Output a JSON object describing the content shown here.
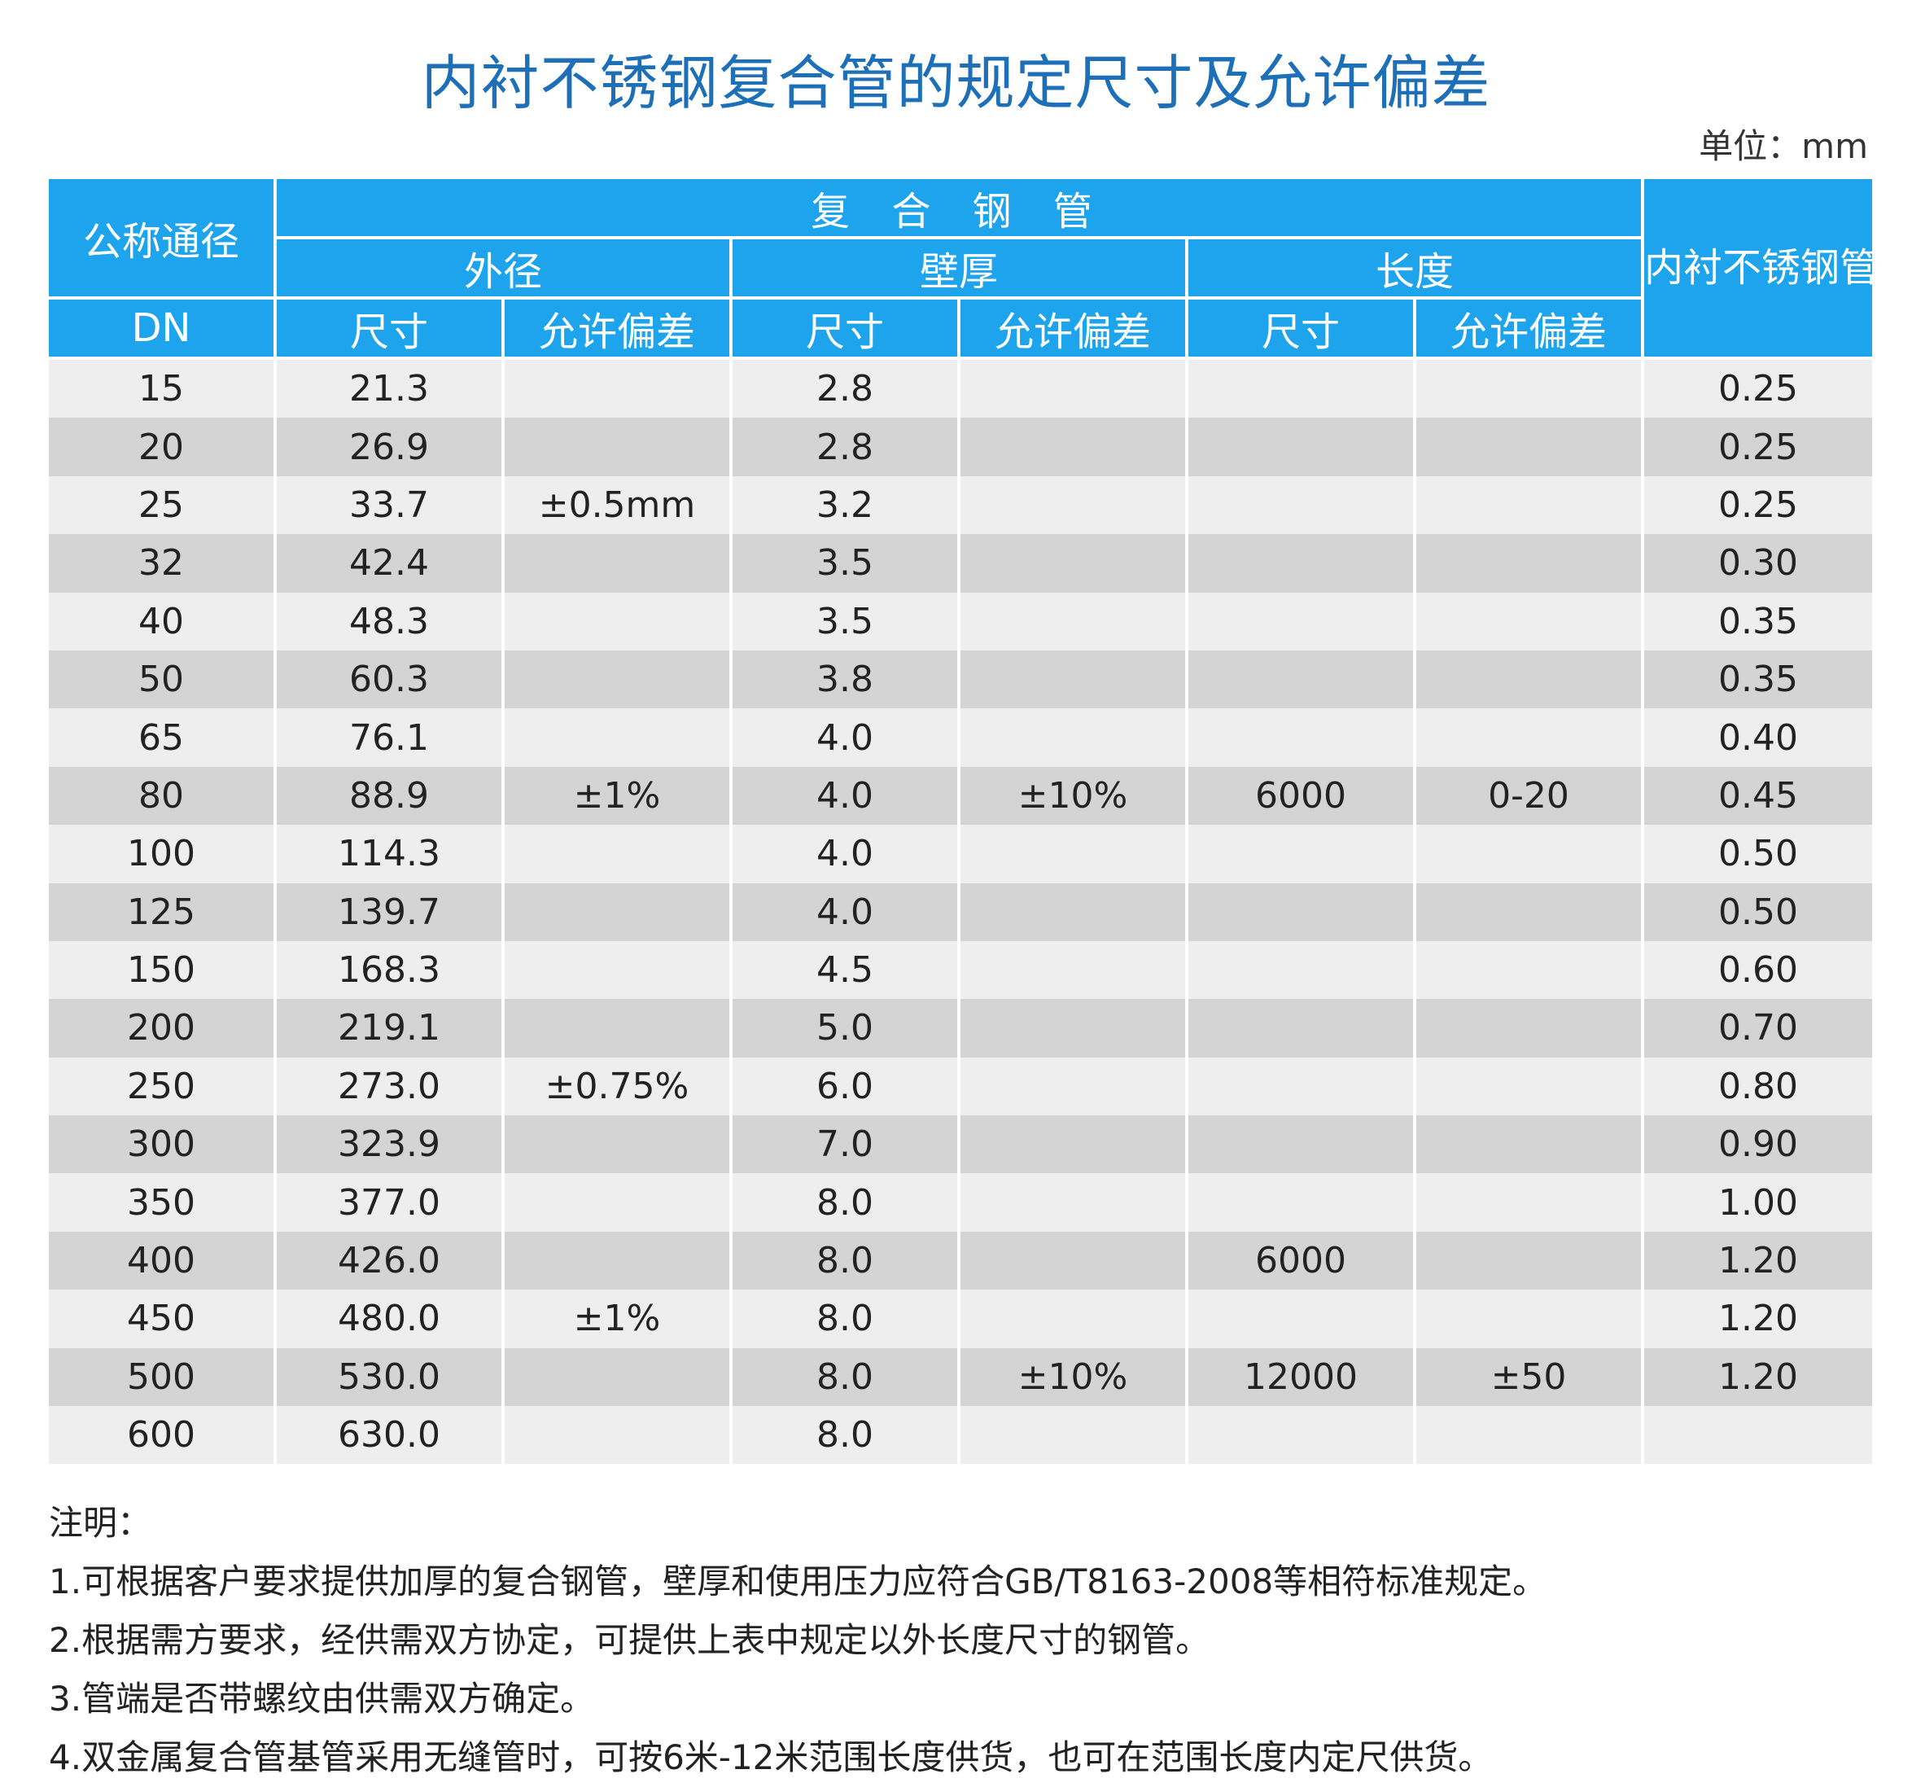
{
  "title": "内衬不锈钢复合管的规定尺寸及允许偏差",
  "unit": "单位：mm",
  "header": {
    "nominal": "公称通径",
    "dn": "DN",
    "composite": "复 合 钢 管",
    "od": "外径",
    "wall": "壁厚",
    "length": "长度",
    "size": "尺寸",
    "tolerance": "允许偏差",
    "inner_wall": "内衬不锈钢管最小壁厚"
  },
  "rows": [
    {
      "dn": "15",
      "od": "21.3",
      "wall": "2.8",
      "inner": "0.25"
    },
    {
      "dn": "20",
      "od": "26.9",
      "wall": "2.8",
      "inner": "0.25"
    },
    {
      "dn": "25",
      "od": "33.7",
      "wall": "3.2",
      "inner": "0.25"
    },
    {
      "dn": "32",
      "od": "42.4",
      "wall": "3.5",
      "inner": "0.30"
    },
    {
      "dn": "40",
      "od": "48.3",
      "wall": "3.5",
      "inner": "0.35"
    },
    {
      "dn": "50",
      "od": "60.3",
      "wall": "3.8",
      "inner": "0.35"
    },
    {
      "dn": "65",
      "od": "76.1",
      "wall": "4.0",
      "inner": "0.40"
    },
    {
      "dn": "80",
      "od": "88.9",
      "wall": "4.0",
      "inner": "0.45"
    },
    {
      "dn": "100",
      "od": "114.3",
      "wall": "4.0",
      "inner": "0.50"
    },
    {
      "dn": "125",
      "od": "139.7",
      "wall": "4.0",
      "inner": "0.50"
    },
    {
      "dn": "150",
      "od": "168.3",
      "wall": "4.5",
      "inner": "0.60"
    },
    {
      "dn": "200",
      "od": "219.1",
      "wall": "5.0",
      "inner": "0.70"
    },
    {
      "dn": "250",
      "od": "273.0",
      "wall": "6.0",
      "inner": "0.80"
    },
    {
      "dn": "300",
      "od": "323.9",
      "wall": "7.0",
      "inner": "0.90"
    },
    {
      "dn": "350",
      "od": "377.0",
      "wall": "8.0",
      "inner": "1.00"
    },
    {
      "dn": "400",
      "od": "426.0",
      "wall": "8.0",
      "inner": "1.20"
    },
    {
      "dn": "450",
      "od": "480.0",
      "wall": "8.0",
      "inner": "1.20"
    },
    {
      "dn": "500",
      "od": "530.0",
      "wall": "8.0",
      "inner": "1.20"
    },
    {
      "dn": "600",
      "od": "630.0",
      "wall": "8.0",
      "inner": ""
    }
  ],
  "od_tolerances": [
    {
      "row": 2,
      "value": "±0.5mm"
    },
    {
      "row": 7,
      "value": "±1%"
    },
    {
      "row": 12,
      "value": "±0.75%"
    },
    {
      "row": 16,
      "value": "±1%"
    }
  ],
  "wall_tolerances": [
    {
      "row": 7,
      "value": "±10%"
    },
    {
      "row": 17,
      "value": "±10%"
    }
  ],
  "length_sizes": [
    {
      "row": 7,
      "value": "6000"
    },
    {
      "row": 15,
      "value": "6000"
    },
    {
      "row": 17,
      "value": "12000"
    }
  ],
  "length_tolerances": [
    {
      "row": 7,
      "value": "0-20"
    },
    {
      "row": 17,
      "value": "±50"
    }
  ],
  "notes": [
    "注明：",
    "1.可根据客户要求提供加厚的复合钢管，壁厚和使用压力应符合GB/T8163-2008等相符标准规定。",
    "2.根据需方要求，经供需双方协定，可提供上表中规定以外长度尺寸的钢管。",
    "3.管端是否带螺纹由供需双方确定。",
    "4.双金属复合管基管采用无缝管时，可按6米-12米范围长度供货，也可在范围长度内定尺供货。"
  ]
}
